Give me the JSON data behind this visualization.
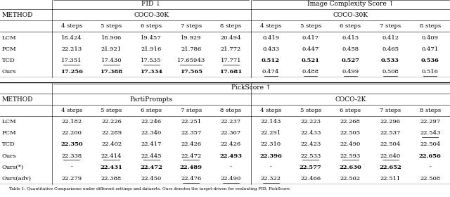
{
  "top_table": {
    "group1_label": "FID ↓",
    "group2_label": "Image Complexity Score ↑",
    "sub1_label": "COCO-30K",
    "sub2_label": "COCO-30K",
    "rows": [
      {
        "method": "LCM",
        "g1": [
          "18.424",
          "18.906",
          "19.457",
          "19.929",
          "20.494"
        ],
        "g2": [
          "0.419",
          "0.417",
          "0.415",
          "0.412",
          "0.409"
        ],
        "g1_bold": [
          false,
          false,
          false,
          false,
          false
        ],
        "g1_under": [
          false,
          false,
          false,
          false,
          false
        ],
        "g2_bold": [
          false,
          false,
          false,
          false,
          false
        ],
        "g2_under": [
          false,
          false,
          false,
          false,
          false
        ]
      },
      {
        "method": "PCM",
        "g1": [
          "22.213",
          "21.921",
          "21.916",
          "21.786",
          "21.772"
        ],
        "g2": [
          "0.433",
          "0.447",
          "0.458",
          "0.465",
          "0.471"
        ],
        "g1_bold": [
          false,
          false,
          false,
          false,
          false
        ],
        "g1_under": [
          false,
          false,
          false,
          false,
          false
        ],
        "g2_bold": [
          false,
          false,
          false,
          false,
          false
        ],
        "g2_under": [
          false,
          false,
          false,
          false,
          false
        ]
      },
      {
        "method": "TCD",
        "g1": [
          "17.351",
          "17.430",
          "17.535",
          "17.65943",
          "17.771"
        ],
        "g2": [
          "0.512",
          "0.521",
          "0.527",
          "0.533",
          "0.536"
        ],
        "g1_bold": [
          false,
          false,
          false,
          false,
          false
        ],
        "g1_under": [
          true,
          true,
          true,
          true,
          true
        ],
        "g2_bold": [
          true,
          true,
          true,
          true,
          true
        ],
        "g2_under": [
          false,
          false,
          false,
          false,
          false
        ]
      },
      {
        "method": "Ours",
        "g1": [
          "17.256",
          "17.388",
          "17.334",
          "17.565",
          "17.681"
        ],
        "g2": [
          "0.474",
          "0.488",
          "0.499",
          "0.508",
          "0.516"
        ],
        "g1_bold": [
          true,
          true,
          true,
          true,
          true
        ],
        "g1_under": [
          false,
          false,
          false,
          false,
          false
        ],
        "g2_bold": [
          false,
          false,
          false,
          false,
          false
        ],
        "g2_under": [
          true,
          true,
          true,
          true,
          true
        ]
      }
    ]
  },
  "bot_table": {
    "group1_label": "PickScore ↑",
    "group2_label": "",
    "sub1_label": "PartiPrompts",
    "sub2_label": "COCO-2K",
    "rows": [
      {
        "method": "LCM",
        "g1": [
          "22.182",
          "22.226",
          "22.246",
          "22.251",
          "22.237"
        ],
        "g2": [
          "22.143",
          "22.223",
          "22.268",
          "22.296",
          "22.297"
        ],
        "g1_bold": [
          false,
          false,
          false,
          false,
          false
        ],
        "g1_under": [
          false,
          false,
          false,
          false,
          false
        ],
        "g2_bold": [
          false,
          false,
          false,
          false,
          false
        ],
        "g2_under": [
          false,
          false,
          false,
          false,
          false
        ]
      },
      {
        "method": "PCM",
        "g1": [
          "22.200",
          "22.289",
          "22.340",
          "22.357",
          "22.367"
        ],
        "g2": [
          "22.291",
          "22.433",
          "22.505",
          "22.537",
          "22.543"
        ],
        "g1_bold": [
          false,
          false,
          false,
          false,
          false
        ],
        "g1_under": [
          false,
          false,
          false,
          false,
          false
        ],
        "g2_bold": [
          false,
          false,
          false,
          false,
          false
        ],
        "g2_under": [
          false,
          false,
          false,
          false,
          true
        ]
      },
      {
        "method": "TCD",
        "g1": [
          "22.350",
          "22.402",
          "22.417",
          "22.426",
          "22.426"
        ],
        "g2": [
          "22.310",
          "22.423",
          "22.490",
          "22.504",
          "22.504"
        ],
        "g1_bold": [
          true,
          false,
          false,
          false,
          false
        ],
        "g1_under": [
          false,
          false,
          false,
          false,
          false
        ],
        "g2_bold": [
          false,
          false,
          false,
          false,
          false
        ],
        "g2_under": [
          false,
          false,
          false,
          false,
          false
        ]
      },
      {
        "method": "Ours",
        "g1": [
          "22.338",
          "22.414",
          "22.445",
          "22.472",
          "22.493"
        ],
        "g2": [
          "22.396",
          "22.533",
          "22.593",
          "22.640",
          "22.656"
        ],
        "g1_bold": [
          false,
          false,
          false,
          false,
          true
        ],
        "g1_under": [
          true,
          true,
          true,
          true,
          false
        ],
        "g2_bold": [
          true,
          false,
          false,
          false,
          true
        ],
        "g2_under": [
          false,
          true,
          true,
          true,
          false
        ]
      },
      {
        "method": "Ours(*)",
        "g1": [
          "-",
          "22.431",
          "22.472",
          "22.489",
          "-"
        ],
        "g2": [
          "-",
          "22.577",
          "22.630",
          "22.652",
          "-"
        ],
        "g1_bold": [
          false,
          true,
          true,
          true,
          false
        ],
        "g1_under": [
          false,
          false,
          false,
          false,
          false
        ],
        "g2_bold": [
          false,
          true,
          true,
          true,
          false
        ],
        "g2_under": [
          false,
          false,
          false,
          false,
          false
        ]
      },
      {
        "method": "Ours(adv)",
        "g1": [
          "22.279",
          "22.388",
          "22.450",
          "22.476",
          "22.490"
        ],
        "g2": [
          "22.322",
          "22.466",
          "22.502",
          "22.511",
          "22.508"
        ],
        "g1_bold": [
          false,
          false,
          false,
          false,
          false
        ],
        "g1_under": [
          false,
          false,
          false,
          true,
          true
        ],
        "g2_bold": [
          false,
          false,
          false,
          false,
          false
        ],
        "g2_under": [
          true,
          false,
          false,
          false,
          false
        ]
      }
    ]
  },
  "caption": "Table 1: Quantitative Comparisons under different settings and datasets. Ours denotes the target-driven for evaluating FID, PickScore.",
  "steps": [
    "4 steps",
    "5 steps",
    "6 steps",
    "7 steps",
    "8 steps"
  ]
}
